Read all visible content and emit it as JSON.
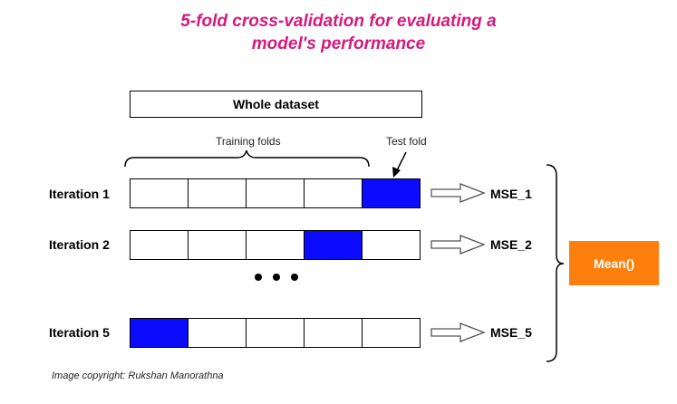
{
  "title_lines": [
    "5-fold cross-validation for evaluating a",
    "model's performance"
  ],
  "whole_dataset_label": "Whole dataset",
  "training_folds_label": "Training folds",
  "test_fold_label": "Test fold",
  "iterations": [
    {
      "label": "Iteration 1",
      "test_index": 4,
      "result": "MSE_1"
    },
    {
      "label": "Iteration 2",
      "test_index": 3,
      "result": "MSE_2"
    },
    {
      "label": "Iteration 5",
      "test_index": 0,
      "result": "MSE_5"
    }
  ],
  "mean_label": "Mean()",
  "copyright": "Image copyright: Rukshan Manorathna",
  "colors": {
    "title": "#d6197c",
    "test_fold": "#0b0bff",
    "mean_box": "#ff7f0e"
  }
}
